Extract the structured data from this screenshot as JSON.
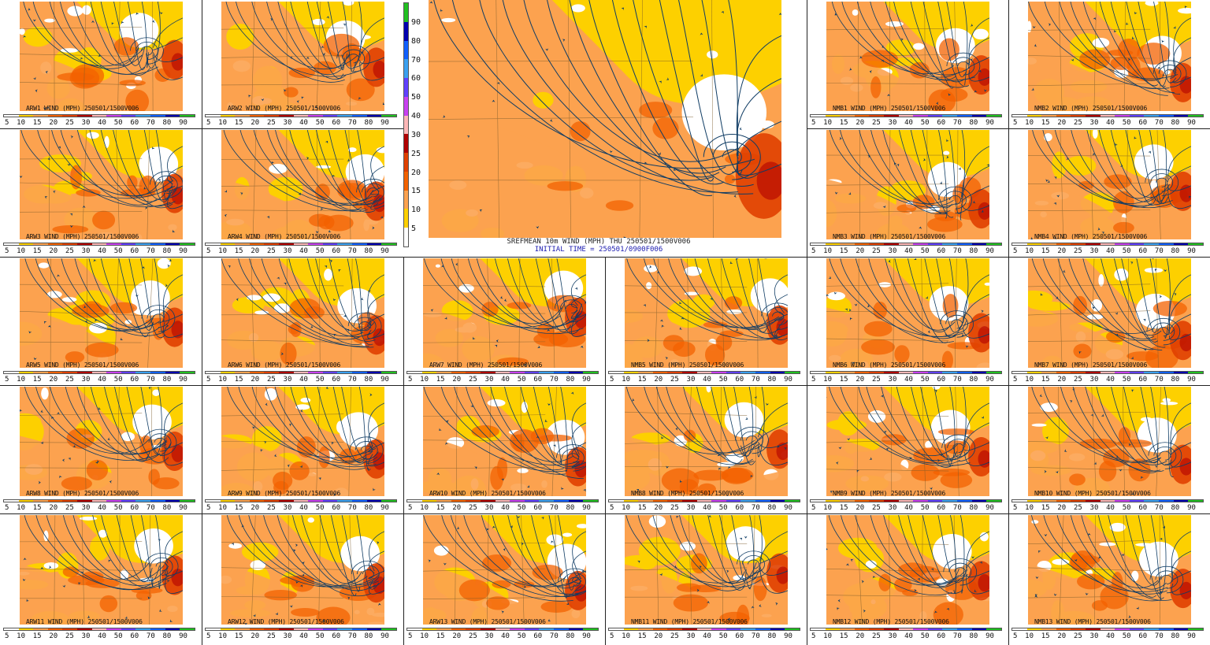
{
  "colors": {
    "scale": [
      "#ffffff",
      "#fdd000",
      "#fca24f",
      "#f36200",
      "#e04000",
      "#b00000",
      "#fcb6b6",
      "#c840f0",
      "#6040ff",
      "#3aa0f0",
      "#1060ff",
      "#0000b0",
      "#20c020"
    ],
    "streamline": "#0f3c64",
    "border": "#333333"
  },
  "scale_ticks": [
    "5",
    "10",
    "15",
    "20",
    "25",
    "30",
    "40",
    "50",
    "60",
    "70",
    "80",
    "90"
  ],
  "vertical_scale_ticks": [
    "5",
    "10",
    "15",
    "20",
    "25",
    "30",
    "40",
    "50",
    "60",
    "70",
    "80",
    "90"
  ],
  "center": {
    "title": "SREFMEAN 10m WIND (MPH) THU 250501/1500V006",
    "subtitle": "INITIAL TIME = 250501/0900F006"
  },
  "panels": [
    {
      "id": "arw1",
      "title": "ARW1 WIND (MPH) 250501/1500V006"
    },
    {
      "id": "arw2",
      "title": "ARW2 WIND (MPH) 250501/1500V006"
    },
    {
      "id": "nmb1",
      "title": "NMB1 WIND (MPH) 250501/1500V006"
    },
    {
      "id": "nmb2",
      "title": "NMB2 WIND (MPH) 250501/1500V006"
    },
    {
      "id": "arw3",
      "title": "ARW3 WIND (MPH) 250501/1500V006"
    },
    {
      "id": "arw4",
      "title": "ARW4 WIND (MPH) 250501/1500V006"
    },
    {
      "id": "nmb3",
      "title": "NMB3 WIND (MPH) 250501/1500V006"
    },
    {
      "id": "nmb4",
      "title": "NMB4 WIND (MPH) 250501/1500V006"
    },
    {
      "id": "arw5",
      "title": "ARW5 WIND (MPH) 250501/1500V006"
    },
    {
      "id": "arw6",
      "title": "ARW6 WIND (MPH) 250501/1500V006"
    },
    {
      "id": "arw7",
      "title": "ARW7 WIND (MPH) 250501/1500V006"
    },
    {
      "id": "nmb5",
      "title": "NMB5 WIND (MPH) 250501/1500V006"
    },
    {
      "id": "nmb6",
      "title": "NMB6 WIND (MPH) 250501/1500V006"
    },
    {
      "id": "nmb7",
      "title": "NMB7 WIND (MPH) 250501/1500V006"
    },
    {
      "id": "arw8",
      "title": "ARW8 WIND (MPH) 250501/1500V006"
    },
    {
      "id": "arw9",
      "title": "ARW9 WIND (MPH) 250501/1500V006"
    },
    {
      "id": "arw10",
      "title": "ARW10 WIND (MPH) 250501/1500V006"
    },
    {
      "id": "nmb8",
      "title": "NMB8 WIND (MPH) 250501/1500V006"
    },
    {
      "id": "nmb9",
      "title": "NMB9 WIND (MPH) 250501/1500V006"
    },
    {
      "id": "nmb10",
      "title": "NMB10 WIND (MPH) 250501/1500V006"
    },
    {
      "id": "arw11",
      "title": "ARW11 WIND (MPH) 250501/1500V006"
    },
    {
      "id": "arw12",
      "title": "ARW12 WIND (MPH) 250501/1500V006"
    },
    {
      "id": "arw13",
      "title": "ARW13 WIND (MPH) 250501/1500V006"
    },
    {
      "id": "nmb11",
      "title": "NMB11 WIND (MPH) 250501/1500V006"
    },
    {
      "id": "nmb12",
      "title": "NMB12 WIND (MPH) 250501/1500V006"
    },
    {
      "id": "nmb13",
      "title": "NMB13 WIND (MPH) 250501/1500V006"
    }
  ]
}
